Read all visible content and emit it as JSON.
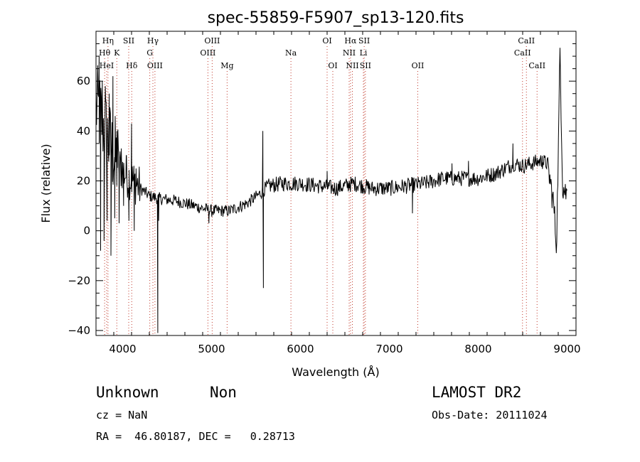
{
  "chart_data": {
    "type": "line",
    "title": "spec-55859-F5907_sp13-120.fits",
    "xlabel": "Wavelength (Å)",
    "ylabel": "Flux (relative)",
    "xlim": [
      3700,
      9100
    ],
    "ylim": [
      -42,
      80
    ],
    "x_ticks": [
      4000,
      5000,
      6000,
      7000,
      8000,
      9000
    ],
    "y_ticks": [
      -40,
      -20,
      0,
      20,
      40,
      60
    ],
    "spectral_lines": [
      {
        "label": "Hη",
        "wavelength": 3835,
        "row": 0
      },
      {
        "label": "Hθ",
        "wavelength": 3797,
        "row": 1
      },
      {
        "label": "HeI",
        "wavelength": 3820,
        "row": 2
      },
      {
        "label": "K",
        "wavelength": 3934,
        "row": 1
      },
      {
        "label": "SII",
        "wavelength": 4068,
        "row": 0
      },
      {
        "label": "Hδ",
        "wavelength": 4102,
        "row": 2
      },
      {
        "label": "Hγ",
        "wavelength": 4340,
        "row": 0
      },
      {
        "label": "G",
        "wavelength": 4305,
        "row": 1
      },
      {
        "label": "OIII",
        "wavelength": 4363,
        "row": 2
      },
      {
        "label": "OIII",
        "wavelength": 5007,
        "row": 0
      },
      {
        "label": "OIII",
        "wavelength": 4959,
        "row": 1
      },
      {
        "label": "Mg",
        "wavelength": 5175,
        "row": 2
      },
      {
        "label": "Na",
        "wavelength": 5893,
        "row": 1
      },
      {
        "label": "OI",
        "wavelength": 6300,
        "row": 0
      },
      {
        "label": "OI",
        "wavelength": 6364,
        "row": 2
      },
      {
        "label": "Hα",
        "wavelength": 6563,
        "row": 0
      },
      {
        "label": "SII",
        "wavelength": 6717,
        "row": 0
      },
      {
        "label": "NII",
        "wavelength": 6548,
        "row": 1
      },
      {
        "label": "Li",
        "wavelength": 6708,
        "row": 1
      },
      {
        "label": "NII",
        "wavelength": 6584,
        "row": 2
      },
      {
        "label": "SII",
        "wavelength": 6731,
        "row": 2
      },
      {
        "label": "OII",
        "wavelength": 7320,
        "row": 2
      },
      {
        "label": "CaII",
        "wavelength": 8542,
        "row": 0
      },
      {
        "label": "CaII",
        "wavelength": 8498,
        "row": 1
      },
      {
        "label": "CaII",
        "wavelength": 8662,
        "row": 2
      }
    ],
    "spectrum_anchors": {
      "x": [
        3700,
        3760,
        3820,
        3900,
        3980,
        4050,
        4120,
        4200,
        4300,
        4400,
        4600,
        4800,
        5000,
        5200,
        5400,
        5550,
        5650,
        5800,
        6000,
        6200,
        6400,
        6600,
        6800,
        7000,
        7200,
        7400,
        7600,
        7800,
        8000,
        8200,
        8400,
        8500,
        8600,
        8700,
        8780,
        8850,
        8880,
        8900,
        8920,
        8950,
        8990
      ],
      "y": [
        50,
        45,
        38,
        30,
        25,
        22,
        20,
        17,
        14,
        13,
        12,
        10,
        8,
        8,
        11,
        15,
        18,
        19,
        19,
        18,
        17,
        19,
        17,
        17,
        18,
        19,
        21,
        21,
        21,
        23,
        27,
        26,
        27,
        28,
        27,
        10,
        -6,
        30,
        72,
        18,
        15
      ]
    },
    "spikes": [
      {
        "x": 3735,
        "y": 70
      },
      {
        "x": 3752,
        "y": -8
      },
      {
        "x": 3770,
        "y": 60
      },
      {
        "x": 3790,
        "y": -4
      },
      {
        "x": 3805,
        "y": 58
      },
      {
        "x": 3825,
        "y": 4
      },
      {
        "x": 3848,
        "y": 55
      },
      {
        "x": 3868,
        "y": -10
      },
      {
        "x": 3890,
        "y": 62
      },
      {
        "x": 3910,
        "y": 5
      },
      {
        "x": 3935,
        "y": 40
      },
      {
        "x": 3960,
        "y": 3
      },
      {
        "x": 3985,
        "y": 33
      },
      {
        "x": 4010,
        "y": 10
      },
      {
        "x": 4040,
        "y": 30
      },
      {
        "x": 4070,
        "y": 4
      },
      {
        "x": 4100,
        "y": 43
      },
      {
        "x": 4130,
        "y": 0
      },
      {
        "x": 4150,
        "y": 25
      },
      {
        "x": 4395,
        "y": -41
      },
      {
        "x": 4405,
        "y": 4
      },
      {
        "x": 4970,
        "y": 3
      },
      {
        "x": 5577,
        "y": 40
      },
      {
        "x": 5583,
        "y": -23
      },
      {
        "x": 6300,
        "y": 24
      },
      {
        "x": 6550,
        "y": 20
      },
      {
        "x": 7260,
        "y": 7
      },
      {
        "x": 7705,
        "y": 27
      },
      {
        "x": 7890,
        "y": 28
      },
      {
        "x": 8390,
        "y": 35
      },
      {
        "x": 8720,
        "y": 30
      }
    ]
  },
  "info": {
    "class_label": "Unknown",
    "subclass_label": "Non",
    "survey": "LAMOST DR2",
    "cz": "cz = NaN",
    "obs_date": "Obs-Date: 20111024",
    "coords": "RA =  46.80187, DEC =   0.28713"
  }
}
